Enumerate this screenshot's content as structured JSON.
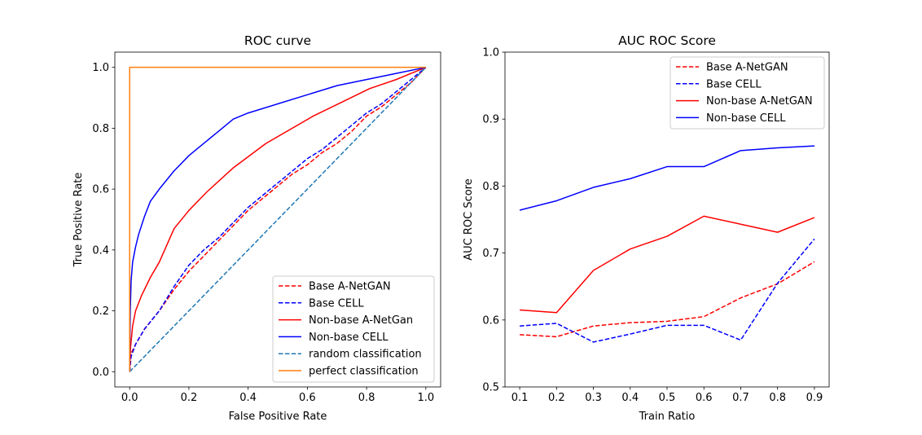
{
  "chart_data": [
    {
      "type": "line",
      "title": "ROC curve",
      "xlabel": "False Positive Rate",
      "ylabel": "True Positive Rate",
      "xlim": [
        -0.05,
        1.05
      ],
      "ylim": [
        -0.05,
        1.05
      ],
      "xticks": [
        0.0,
        0.2,
        0.4,
        0.6,
        0.8,
        1.0
      ],
      "yticks": [
        0.0,
        0.2,
        0.4,
        0.6,
        0.8,
        1.0
      ],
      "xtick_labels": [
        "0.0",
        "0.2",
        "0.4",
        "0.6",
        "0.8",
        "1.0"
      ],
      "ytick_labels": [
        "0.0",
        "0.2",
        "0.4",
        "0.6",
        "0.8",
        "1.0"
      ],
      "grid": false,
      "legend_position": "lower-right",
      "series": [
        {
          "name": "Base A-NetGAN",
          "color": "#ff0000",
          "dash": "dashed",
          "x": [
            0,
            0.005,
            0.02,
            0.05,
            0.1,
            0.15,
            0.2,
            0.25,
            0.3,
            0.35,
            0.4,
            0.45,
            0.5,
            0.55,
            0.6,
            0.65,
            0.7,
            0.75,
            0.8,
            0.85,
            0.9,
            0.95,
            1.0
          ],
          "y": [
            0,
            0.06,
            0.09,
            0.14,
            0.2,
            0.27,
            0.33,
            0.38,
            0.43,
            0.48,
            0.53,
            0.57,
            0.61,
            0.65,
            0.68,
            0.72,
            0.75,
            0.79,
            0.84,
            0.87,
            0.91,
            0.95,
            1.0
          ]
        },
        {
          "name": "Base CELL",
          "color": "#0000ff",
          "dash": "dashed",
          "x": [
            0,
            0.005,
            0.02,
            0.05,
            0.1,
            0.15,
            0.2,
            0.25,
            0.3,
            0.35,
            0.4,
            0.45,
            0.5,
            0.55,
            0.6,
            0.65,
            0.7,
            0.75,
            0.8,
            0.85,
            0.9,
            0.95,
            1.0
          ],
          "y": [
            0,
            0.05,
            0.09,
            0.14,
            0.2,
            0.28,
            0.35,
            0.4,
            0.44,
            0.49,
            0.54,
            0.58,
            0.62,
            0.66,
            0.7,
            0.73,
            0.77,
            0.81,
            0.85,
            0.88,
            0.92,
            0.96,
            1.0
          ]
        },
        {
          "name": "Non-base A-NetGan",
          "color": "#ff0000",
          "dash": "solid",
          "x": [
            0,
            0.003,
            0.01,
            0.02,
            0.04,
            0.07,
            0.1,
            0.15,
            0.2,
            0.26,
            0.35,
            0.46,
            0.62,
            0.81,
            0.9,
            1.0
          ],
          "y": [
            0,
            0.08,
            0.15,
            0.2,
            0.25,
            0.31,
            0.36,
            0.47,
            0.53,
            0.59,
            0.67,
            0.75,
            0.84,
            0.93,
            0.96,
            1.0
          ]
        },
        {
          "name": "Non-base CELL",
          "color": "#0000ff",
          "dash": "solid",
          "x": [
            0,
            0.002,
            0.005,
            0.01,
            0.02,
            0.03,
            0.05,
            0.07,
            0.1,
            0.15,
            0.2,
            0.25,
            0.3,
            0.35,
            0.4,
            0.5,
            0.6,
            0.7,
            0.8,
            0.9,
            1.0
          ],
          "y": [
            0,
            0.2,
            0.3,
            0.36,
            0.41,
            0.45,
            0.51,
            0.56,
            0.6,
            0.66,
            0.71,
            0.75,
            0.79,
            0.83,
            0.85,
            0.88,
            0.91,
            0.94,
            0.96,
            0.98,
            1.0
          ]
        },
        {
          "name": "random classification",
          "color": "#1f77b4",
          "dash": "dashed",
          "x": [
            0,
            1
          ],
          "y": [
            0,
            1
          ]
        },
        {
          "name": "perfect classification",
          "color": "#ff7f0e",
          "dash": "solid",
          "x": [
            0,
            0,
            1
          ],
          "y": [
            0,
            1,
            1
          ]
        }
      ]
    },
    {
      "type": "line",
      "title": "AUC ROC Score",
      "xlabel": "Train Ratio",
      "ylabel": "AUC ROC Score",
      "xlim": [
        0.06,
        0.94
      ],
      "ylim": [
        0.5,
        1.0
      ],
      "xticks": [
        0.1,
        0.2,
        0.3,
        0.4,
        0.5,
        0.6,
        0.7,
        0.8,
        0.9
      ],
      "yticks": [
        0.5,
        0.6,
        0.7,
        0.8,
        0.9,
        1.0
      ],
      "xtick_labels": [
        "0.1",
        "0.2",
        "0.3",
        "0.4",
        "0.5",
        "0.6",
        "0.7",
        "0.8",
        "0.9"
      ],
      "ytick_labels": [
        "0.5",
        "0.6",
        "0.7",
        "0.8",
        "0.9",
        "1.0"
      ],
      "grid": false,
      "legend_position": "upper-right",
      "x": [
        0.1,
        0.2,
        0.3,
        0.4,
        0.5,
        0.6,
        0.7,
        0.8,
        0.9
      ],
      "series": [
        {
          "name": "Base A-NetGAN",
          "color": "#ff0000",
          "dash": "dashed",
          "values": [
            0.578,
            0.575,
            0.591,
            0.596,
            0.598,
            0.605,
            0.633,
            0.654,
            0.687
          ]
        },
        {
          "name": "Base CELL",
          "color": "#0000ff",
          "dash": "dashed",
          "values": [
            0.591,
            0.595,
            0.567,
            0.579,
            0.592,
            0.592,
            0.57,
            0.655,
            0.721
          ]
        },
        {
          "name": "Non-base A-NetGAN",
          "color": "#ff0000",
          "dash": "solid",
          "values": [
            0.615,
            0.611,
            0.674,
            0.706,
            0.725,
            0.755,
            0.743,
            0.731,
            0.753
          ]
        },
        {
          "name": "Non-base CELL",
          "color": "#0000ff",
          "dash": "solid",
          "values": [
            0.764,
            0.778,
            0.798,
            0.811,
            0.829,
            0.829,
            0.853,
            0.857,
            0.86
          ]
        }
      ]
    }
  ]
}
